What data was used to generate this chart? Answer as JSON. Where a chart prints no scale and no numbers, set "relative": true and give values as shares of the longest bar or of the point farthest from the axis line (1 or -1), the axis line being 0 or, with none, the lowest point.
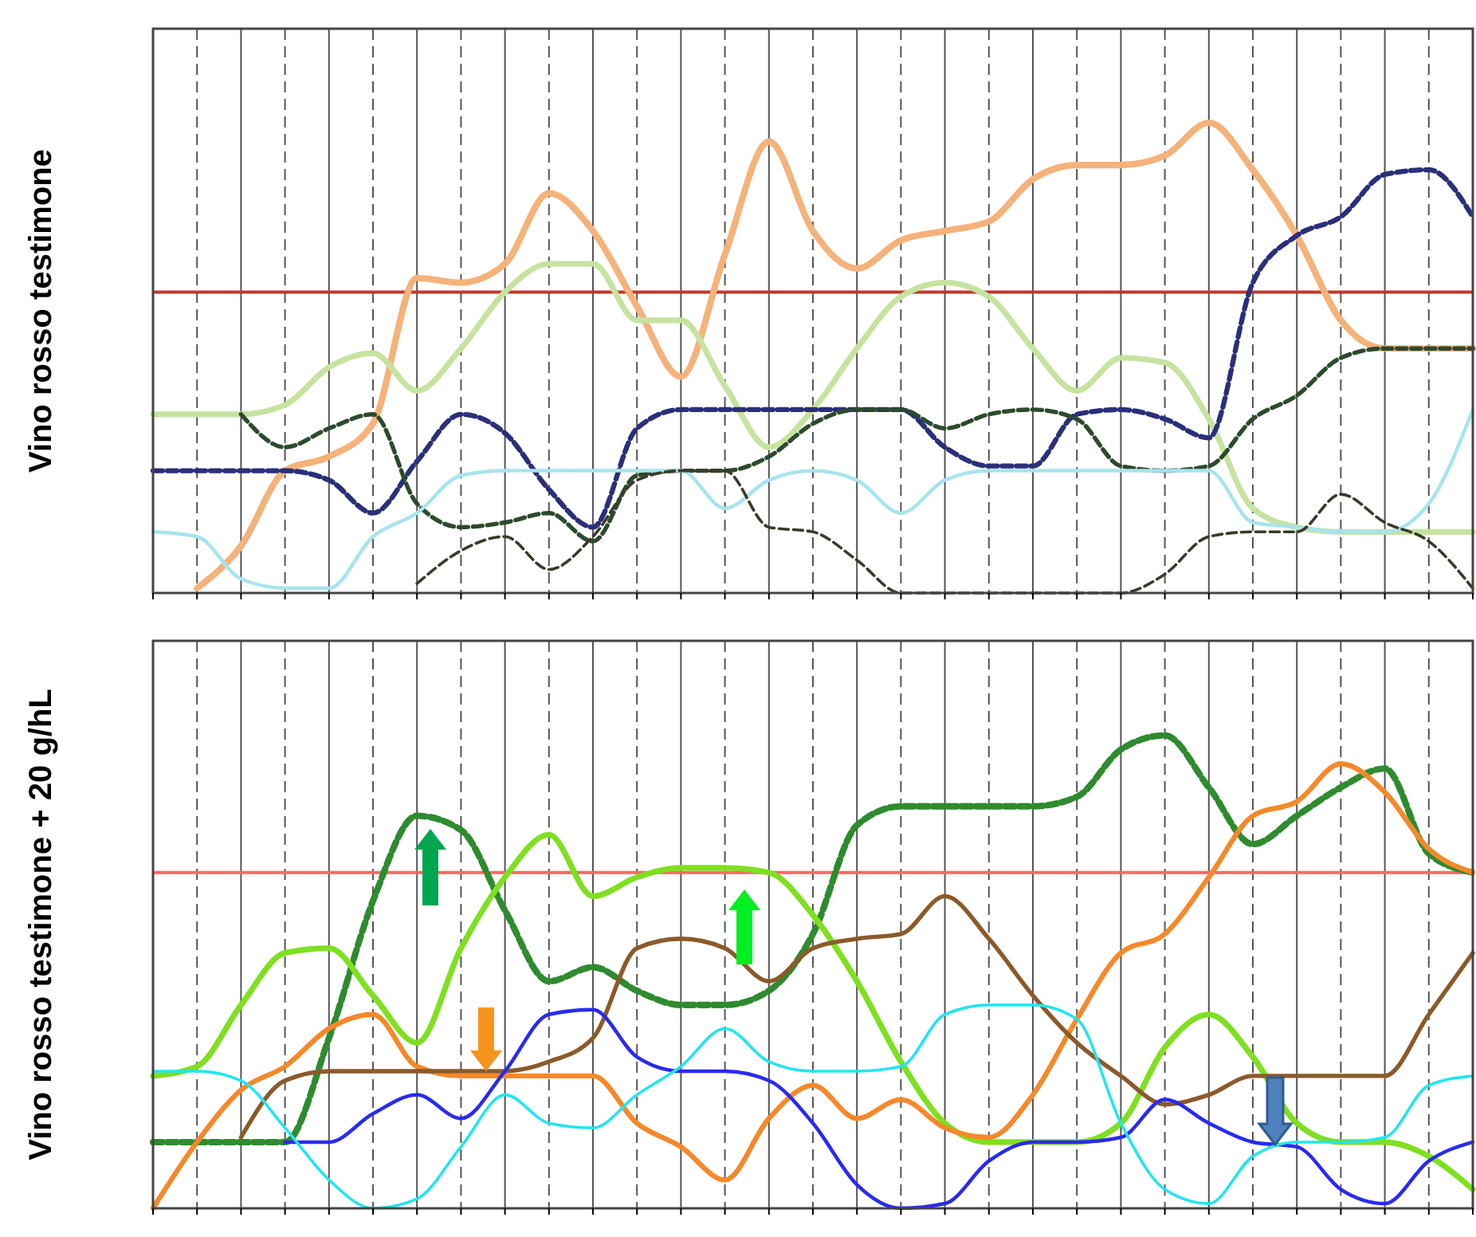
{
  "chart_data": [
    {
      "type": "line",
      "ylabel": "Vino rosso testimone",
      "relative": true,
      "grid": "x",
      "categories": [
        null,
        null,
        null,
        null,
        null,
        null,
        null,
        null,
        null,
        null,
        null,
        null,
        null,
        null,
        null,
        null,
        null,
        null,
        null,
        null,
        null,
        null,
        null,
        null,
        null,
        null,
        null,
        null,
        null,
        null,
        null
      ],
      "ref_lines": [
        {
          "axis": "y",
          "value": 0.64,
          "color": "#c0392b"
        }
      ],
      "series": [
        {
          "color": "#f5b27a",
          "line_style": "solid",
          "values": [
            null,
            0.01,
            0.1,
            0.26,
            0.29,
            0.36,
            0.67,
            0.66,
            0.7,
            0.85,
            0.77,
            0.61,
            0.46,
            0.72,
            0.96,
            0.77,
            0.69,
            0.75,
            0.77,
            0.79,
            0.88,
            0.91,
            0.91,
            0.93,
            1,
            0.9,
            0.76,
            0.58,
            0.52,
            0.52,
            0.52
          ]
        },
        {
          "color": "#c6e3a0",
          "line_style": "solid",
          "values": [
            0.38,
            0.38,
            0.38,
            0.4,
            0.48,
            0.51,
            0.43,
            0.52,
            0.64,
            0.7,
            0.7,
            0.58,
            0.58,
            0.44,
            0.31,
            0.39,
            0.52,
            0.63,
            0.66,
            0.63,
            0.52,
            0.43,
            0.5,
            0.49,
            0.37,
            0.18,
            0.14,
            0.13,
            0.13,
            0.13,
            0.13
          ]
        },
        {
          "color": "#2b2f7a",
          "line_style": "dashed",
          "values": [
            0.26,
            0.26,
            0.26,
            0.26,
            0.24,
            0.17,
            0.28,
            0.38,
            0.34,
            0.22,
            0.14,
            0.35,
            0.39,
            0.39,
            0.39,
            0.39,
            0.39,
            0.39,
            0.31,
            0.27,
            0.27,
            0.38,
            0.39,
            0.37,
            0.33,
            0.66,
            0.76,
            0.8,
            0.89,
            0.9,
            0.8
          ]
        },
        {
          "color": "#2d4a2d",
          "line_style": "dashed",
          "values": [
            null,
            null,
            0.38,
            0.31,
            0.35,
            0.38,
            0.19,
            0.14,
            0.15,
            0.17,
            0.11,
            0.25,
            0.26,
            0.26,
            0.29,
            0.36,
            0.39,
            0.39,
            0.35,
            0.38,
            0.39,
            0.37,
            0.27,
            0.26,
            0.27,
            0.37,
            0.42,
            0.5,
            0.52,
            0.52,
            0.52
          ]
        },
        {
          "color": "#a8e4ec",
          "line_style": "solid",
          "values": [
            0.13,
            0.12,
            0.03,
            0.01,
            0.01,
            0.12,
            0.17,
            0.25,
            0.26,
            0.26,
            0.26,
            0.26,
            0.26,
            0.18,
            0.24,
            0.26,
            0.24,
            0.17,
            0.24,
            0.26,
            0.26,
            0.26,
            0.26,
            0.26,
            0.26,
            0.15,
            0.14,
            0.13,
            0.13,
            0.19,
            0.39
          ]
        },
        {
          "color": "#3a3a2a",
          "line_style": "dashed",
          "values": [
            null,
            null,
            null,
            null,
            null,
            null,
            0.02,
            0.09,
            0.12,
            0.05,
            0.12,
            0.24,
            0.26,
            0.26,
            0.14,
            0.13,
            0.07,
            0,
            0,
            0,
            0,
            0,
            0,
            0.04,
            0.12,
            0.13,
            0.13,
            0.21,
            0.15,
            0.11,
            0.01
          ]
        }
      ]
    },
    {
      "type": "line",
      "ylabel": "Vino rosso testimone + 20 g/hL",
      "relative": true,
      "grid": "x",
      "categories": [
        null,
        null,
        null,
        null,
        null,
        null,
        null,
        null,
        null,
        null,
        null,
        null,
        null,
        null,
        null,
        null,
        null,
        null,
        null,
        null,
        null,
        null,
        null,
        null,
        null,
        null,
        null,
        null,
        null,
        null,
        null
      ],
      "ref_lines": [
        {
          "axis": "y",
          "value": 0.71,
          "color": "#ff6666"
        }
      ],
      "series": [
        {
          "color": "#2e8b2e",
          "line_style": "dashed",
          "values": [
            0.14,
            0.14,
            0.14,
            0.14,
            0.36,
            0.65,
            0.83,
            0.8,
            0.63,
            0.48,
            0.51,
            0.46,
            0.43,
            0.43,
            0.46,
            0.58,
            0.81,
            0.85,
            0.85,
            0.85,
            0.85,
            0.87,
            0.97,
            1,
            0.89,
            0.77,
            0.83,
            0.89,
            0.93,
            0.75,
            0.71
          ]
        },
        {
          "color": "#7ee020",
          "line_style": "solid",
          "values": [
            0.28,
            0.3,
            0.43,
            0.54,
            0.55,
            0.45,
            0.35,
            0.55,
            0.7,
            0.79,
            0.66,
            0.7,
            0.72,
            0.72,
            0.71,
            0.62,
            0.48,
            0.31,
            0.18,
            0.14,
            0.14,
            0.14,
            0.18,
            0.34,
            0.41,
            0.32,
            0.18,
            0.14,
            0.14,
            0.11,
            0.04
          ]
        },
        {
          "color": "#f5892a",
          "line_style": "solid",
          "values": [
            0,
            0.14,
            0.25,
            0.3,
            0.38,
            0.41,
            0.3,
            0.28,
            0.28,
            0.28,
            0.28,
            0.18,
            0.13,
            0.06,
            0.19,
            0.26,
            0.19,
            0.23,
            0.17,
            0.15,
            0.24,
            0.4,
            0.54,
            0.58,
            0.7,
            0.83,
            0.86,
            0.94,
            0.88,
            0.76,
            0.71
          ]
        },
        {
          "color": "#8b5a2b",
          "line_style": "solid",
          "values": [
            null,
            null,
            0.15,
            0.27,
            0.29,
            0.29,
            0.29,
            0.29,
            0.29,
            0.31,
            0.36,
            0.55,
            0.57,
            0.55,
            0.48,
            0.55,
            0.57,
            0.58,
            0.66,
            0.57,
            0.45,
            0.35,
            0.28,
            0.22,
            0.24,
            0.28,
            0.28,
            0.28,
            0.28,
            0.41,
            0.54
          ]
        },
        {
          "color": "#2a2af0",
          "line_style": "solid",
          "values": [
            null,
            null,
            null,
            0.14,
            0.14,
            0.2,
            0.24,
            0.19,
            0.29,
            0.41,
            0.42,
            0.32,
            0.29,
            0.29,
            0.27,
            0.18,
            0.05,
            0,
            0.01,
            0.1,
            0.14,
            0.14,
            0.15,
            0.23,
            0.18,
            0.14,
            0.13,
            0.04,
            0.01,
            0.1,
            0.14
          ]
        },
        {
          "color": "#22e5f0",
          "line_style": "solid",
          "values": [
            0.29,
            0.29,
            0.27,
            0.17,
            0.06,
            0,
            0.02,
            0.13,
            0.24,
            0.18,
            0.17,
            0.24,
            0.3,
            0.38,
            0.31,
            0.29,
            0.29,
            0.3,
            0.41,
            0.43,
            0.43,
            0.4,
            0.18,
            0.04,
            0.01,
            0.11,
            0.14,
            0.14,
            0.15,
            0.26,
            0.28
          ]
        }
      ]
    }
  ]
}
